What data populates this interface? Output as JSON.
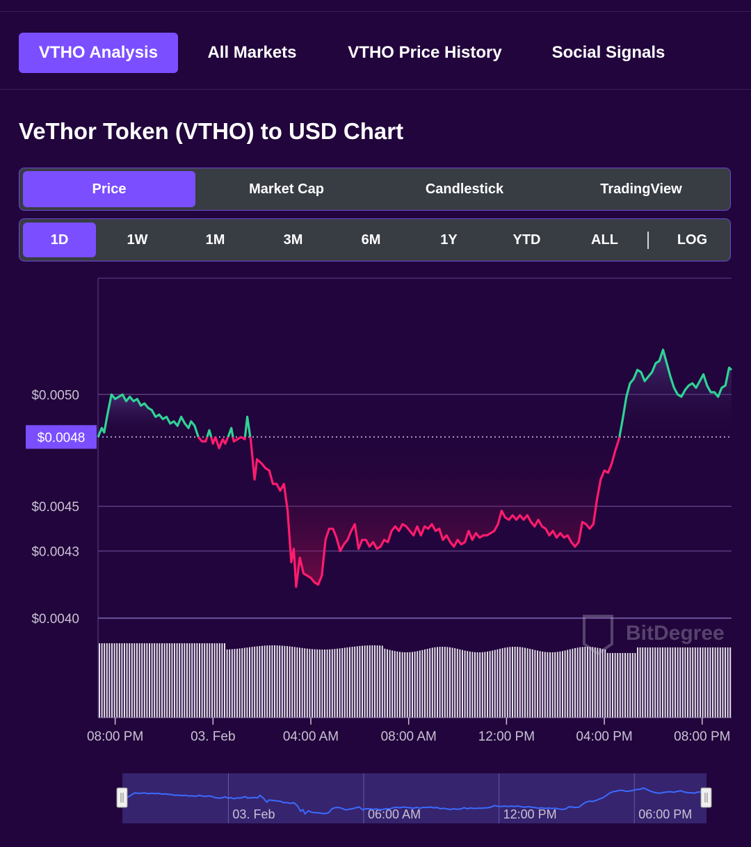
{
  "nav": {
    "tabs": [
      "VTHO Analysis",
      "All Markets",
      "VTHO Price History",
      "Social Signals"
    ],
    "active": 0
  },
  "page": {
    "title": "VeThor Token (VTHO) to USD Chart"
  },
  "chart_tabs": {
    "items": [
      "Price",
      "Market Cap",
      "Candlestick",
      "TradingView"
    ],
    "active": 0
  },
  "ranges": {
    "items": [
      "1D",
      "1W",
      "1M",
      "3M",
      "6M",
      "1Y",
      "YTD",
      "ALL"
    ],
    "log_label": "LOG",
    "active": 0
  },
  "watermark": "BitDegree",
  "colors": {
    "up": "#2fd395",
    "down": "#ff1c6e",
    "accent": "#7b4fff",
    "navigator_line": "#3b6bff",
    "volume": "#e6e2ea"
  },
  "chart_data": {
    "type": "line",
    "y_ticks": [
      "$0.0050",
      "$0.0048",
      "$0.0045",
      "$0.0043",
      "$0.0040"
    ],
    "ylim": [
      0.00395,
      0.00552
    ],
    "baseline": 0.00481,
    "baseline_label": "$0.0048",
    "x_tick_labels": [
      "08:00 PM",
      "03. Feb",
      "04:00 AM",
      "08:00 AM",
      "12:00 PM",
      "04:00 PM",
      "08:00 PM"
    ],
    "x_range_hours": [
      -0.7,
      25.2
    ],
    "x_tick_hours": [
      0,
      4,
      8,
      12,
      16,
      20,
      24
    ],
    "series": [
      {
        "values": [
          [
            -0.7,
            0.00481
          ],
          [
            -0.55,
            0.00485
          ],
          [
            -0.45,
            0.00483
          ],
          [
            -0.3,
            0.00492
          ],
          [
            -0.15,
            0.005
          ],
          [
            0.0,
            0.00498
          ],
          [
            0.15,
            0.00499
          ],
          [
            0.3,
            0.005
          ],
          [
            0.45,
            0.00497
          ],
          [
            0.6,
            0.00499
          ],
          [
            0.75,
            0.00497
          ],
          [
            0.9,
            0.00498
          ],
          [
            1.05,
            0.00495
          ],
          [
            1.2,
            0.00496
          ],
          [
            1.35,
            0.00494
          ],
          [
            1.5,
            0.00493
          ],
          [
            1.65,
            0.0049
          ],
          [
            1.8,
            0.00491
          ],
          [
            1.95,
            0.00489
          ],
          [
            2.1,
            0.0049
          ],
          [
            2.25,
            0.00487
          ],
          [
            2.4,
            0.00488
          ],
          [
            2.55,
            0.00486
          ],
          [
            2.7,
            0.0049
          ],
          [
            2.85,
            0.00487
          ],
          [
            3.0,
            0.00485
          ],
          [
            3.1,
            0.00488
          ],
          [
            3.25,
            0.00486
          ],
          [
            3.4,
            0.00481
          ],
          [
            3.55,
            0.00479
          ],
          [
            3.7,
            0.00479
          ],
          [
            3.85,
            0.00484
          ],
          [
            4.0,
            0.00478
          ],
          [
            4.1,
            0.00481
          ],
          [
            4.25,
            0.00476
          ],
          [
            4.4,
            0.0048
          ],
          [
            4.5,
            0.00478
          ],
          [
            4.65,
            0.00482
          ],
          [
            4.75,
            0.00485
          ],
          [
            4.85,
            0.00479
          ],
          [
            5.0,
            0.0048
          ],
          [
            5.15,
            0.00481
          ],
          [
            5.3,
            0.0048
          ],
          [
            5.4,
            0.0049
          ],
          [
            5.55,
            0.00479
          ],
          [
            5.7,
            0.00462
          ],
          [
            5.8,
            0.00471
          ],
          [
            6.0,
            0.00469
          ],
          [
            6.15,
            0.00467
          ],
          [
            6.3,
            0.00466
          ],
          [
            6.45,
            0.0046
          ],
          [
            6.6,
            0.0046
          ],
          [
            6.75,
            0.00457
          ],
          [
            6.9,
            0.0046
          ],
          [
            7.05,
            0.00448
          ],
          [
            7.2,
            0.00425
          ],
          [
            7.3,
            0.00431
          ],
          [
            7.4,
            0.00414
          ],
          [
            7.55,
            0.00427
          ],
          [
            7.7,
            0.0042
          ],
          [
            7.85,
            0.00419
          ],
          [
            8.0,
            0.00418
          ],
          [
            8.15,
            0.00416
          ],
          [
            8.3,
            0.00415
          ],
          [
            8.45,
            0.00419
          ],
          [
            8.6,
            0.00435
          ],
          [
            8.75,
            0.0044
          ],
          [
            8.9,
            0.0044
          ],
          [
            9.05,
            0.00436
          ],
          [
            9.2,
            0.0043
          ],
          [
            9.35,
            0.00433
          ],
          [
            9.5,
            0.00435
          ],
          [
            9.65,
            0.00439
          ],
          [
            9.8,
            0.00442
          ],
          [
            9.95,
            0.00431
          ],
          [
            10.1,
            0.00435
          ],
          [
            10.25,
            0.00435
          ],
          [
            10.4,
            0.00432
          ],
          [
            10.55,
            0.00434
          ],
          [
            10.7,
            0.00431
          ],
          [
            10.85,
            0.00432
          ],
          [
            11.0,
            0.00435
          ],
          [
            11.15,
            0.00434
          ],
          [
            11.3,
            0.00439
          ],
          [
            11.45,
            0.00441
          ],
          [
            11.6,
            0.00439
          ],
          [
            11.75,
            0.00442
          ],
          [
            11.9,
            0.00441
          ],
          [
            12.05,
            0.00439
          ],
          [
            12.2,
            0.00437
          ],
          [
            12.35,
            0.00441
          ],
          [
            12.5,
            0.00437
          ],
          [
            12.65,
            0.00441
          ],
          [
            12.8,
            0.0044
          ],
          [
            12.95,
            0.00442
          ],
          [
            13.1,
            0.00439
          ],
          [
            13.25,
            0.0044
          ],
          [
            13.4,
            0.00435
          ],
          [
            13.55,
            0.00437
          ],
          [
            13.7,
            0.00434
          ],
          [
            13.85,
            0.00432
          ],
          [
            14.0,
            0.00435
          ],
          [
            14.15,
            0.00433
          ],
          [
            14.3,
            0.00434
          ],
          [
            14.45,
            0.00439
          ],
          [
            14.6,
            0.00435
          ],
          [
            14.75,
            0.00438
          ],
          [
            14.9,
            0.00436
          ],
          [
            15.05,
            0.00437
          ],
          [
            15.2,
            0.00437
          ],
          [
            15.35,
            0.00438
          ],
          [
            15.5,
            0.00439
          ],
          [
            15.65,
            0.00442
          ],
          [
            15.8,
            0.00448
          ],
          [
            15.95,
            0.00445
          ],
          [
            16.1,
            0.00444
          ],
          [
            16.25,
            0.00446
          ],
          [
            16.4,
            0.00444
          ],
          [
            16.55,
            0.00446
          ],
          [
            16.7,
            0.00444
          ],
          [
            16.85,
            0.00446
          ],
          [
            17.0,
            0.00443
          ],
          [
            17.15,
            0.00441
          ],
          [
            17.3,
            0.00444
          ],
          [
            17.45,
            0.00441
          ],
          [
            17.6,
            0.0044
          ],
          [
            17.75,
            0.00437
          ],
          [
            17.9,
            0.00439
          ],
          [
            18.05,
            0.00436
          ],
          [
            18.2,
            0.00438
          ],
          [
            18.35,
            0.00436
          ],
          [
            18.5,
            0.00437
          ],
          [
            18.65,
            0.00434
          ],
          [
            18.8,
            0.00432
          ],
          [
            18.95,
            0.00434
          ],
          [
            19.1,
            0.00443
          ],
          [
            19.25,
            0.00442
          ],
          [
            19.4,
            0.0044
          ],
          [
            19.55,
            0.00442
          ],
          [
            19.7,
            0.00453
          ],
          [
            19.85,
            0.00462
          ],
          [
            20.0,
            0.00466
          ],
          [
            20.15,
            0.00465
          ],
          [
            20.3,
            0.00469
          ],
          [
            20.45,
            0.00475
          ],
          [
            20.6,
            0.0048
          ],
          [
            20.75,
            0.00489
          ],
          [
            20.9,
            0.00499
          ],
          [
            21.05,
            0.00505
          ],
          [
            21.2,
            0.00507
          ],
          [
            21.35,
            0.00511
          ],
          [
            21.5,
            0.0051
          ],
          [
            21.65,
            0.00506
          ],
          [
            21.8,
            0.00508
          ],
          [
            21.95,
            0.0051
          ],
          [
            22.1,
            0.00514
          ],
          [
            22.25,
            0.00515
          ],
          [
            22.4,
            0.0052
          ],
          [
            22.55,
            0.00514
          ],
          [
            22.7,
            0.00508
          ],
          [
            22.85,
            0.00503
          ],
          [
            23.0,
            0.005
          ],
          [
            23.15,
            0.00499
          ],
          [
            23.3,
            0.00502
          ],
          [
            23.45,
            0.00504
          ],
          [
            23.6,
            0.00505
          ],
          [
            23.75,
            0.00503
          ],
          [
            23.9,
            0.00506
          ],
          [
            24.05,
            0.00509
          ],
          [
            24.2,
            0.00504
          ],
          [
            24.35,
            0.00501
          ],
          [
            24.5,
            0.00501
          ],
          [
            24.65,
            0.00499
          ],
          [
            24.8,
            0.00503
          ],
          [
            24.95,
            0.00504
          ],
          [
            25.1,
            0.00512
          ],
          [
            25.2,
            0.00511
          ]
        ]
      }
    ],
    "navigator_tick_labels": [
      "03. Feb",
      "06:00 AM",
      "12:00 PM",
      "06:00 PM"
    ],
    "navigator_tick_hours": [
      4,
      10,
      16,
      22
    ]
  }
}
